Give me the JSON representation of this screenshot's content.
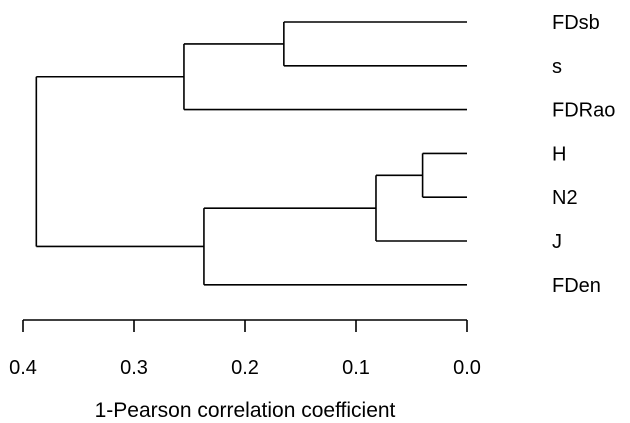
{
  "chart_data": {
    "type": "dendrogram",
    "xlabel": "1-Pearson correlation coefficient",
    "xlim": [
      0.4,
      0.0
    ],
    "xticks": [
      0.4,
      0.3,
      0.2,
      0.1,
      0.0
    ],
    "tick_labels": [
      "0.4",
      "0.3",
      "0.2",
      "0.1",
      "0.0"
    ],
    "leaves": [
      "FDsb",
      "s",
      "FDRao",
      "H",
      "N2",
      "J",
      "FDen"
    ],
    "merges": [
      {
        "id": "m1",
        "children": [
          "FDsb",
          "s"
        ],
        "height": 0.165
      },
      {
        "id": "m2",
        "children": [
          "m1",
          "FDRao"
        ],
        "height": 0.255
      },
      {
        "id": "m3",
        "children": [
          "H",
          "N2"
        ],
        "height": 0.04
      },
      {
        "id": "m4",
        "children": [
          "m3",
          "J"
        ],
        "height": 0.082
      },
      {
        "id": "m5",
        "children": [
          "m4",
          "FDen"
        ],
        "height": 0.237
      },
      {
        "id": "root",
        "children": [
          "m2",
          "m5"
        ],
        "height": 0.388
      }
    ]
  }
}
